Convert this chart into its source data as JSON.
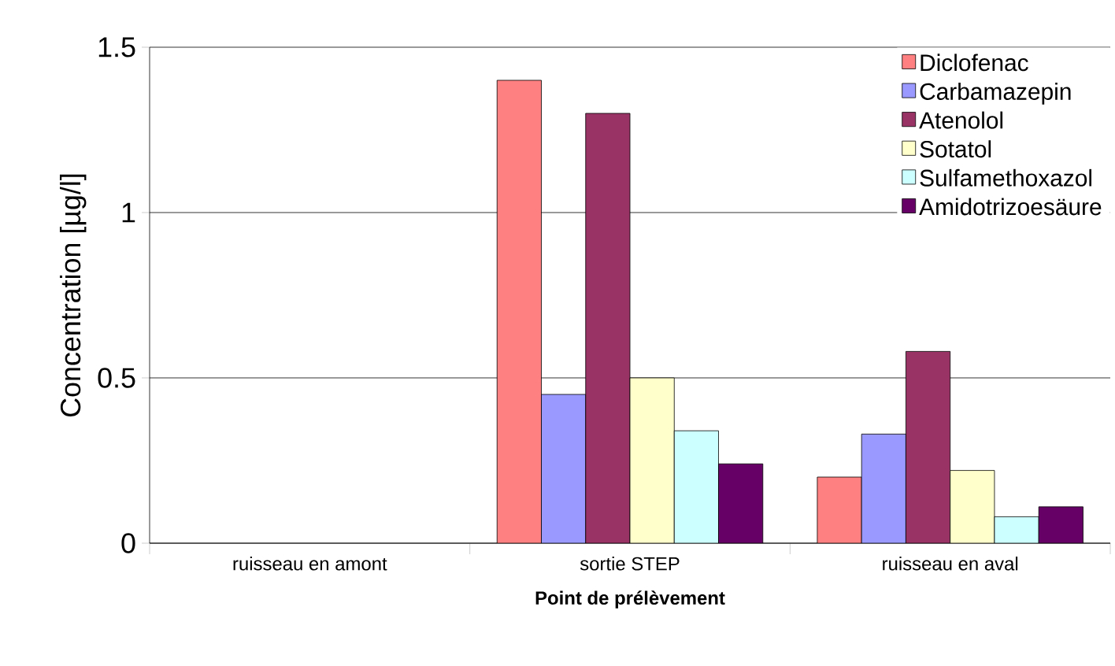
{
  "chart_data": {
    "type": "bar",
    "xlabel": "Point de prélèvement",
    "ylabel": "Concentration [µg/l]",
    "categories": [
      "ruisseau en amont",
      "sortie STEP",
      "ruisseau en aval"
    ],
    "series": [
      {
        "name": "Diclofenac",
        "color": "#ff8080",
        "values": [
          null,
          1.4,
          0.2
        ]
      },
      {
        "name": "Carbamazepin",
        "color": "#9999ff",
        "values": [
          null,
          0.45,
          0.33
        ]
      },
      {
        "name": "Atenolol",
        "color": "#993366",
        "values": [
          null,
          1.3,
          0.58
        ]
      },
      {
        "name": "Sotatol",
        "color": "#ffffcc",
        "values": [
          null,
          0.5,
          0.22
        ]
      },
      {
        "name": "Sulfamethoxazol",
        "color": "#ccffff",
        "values": [
          null,
          0.34,
          0.08
        ]
      },
      {
        "name": "Amidotrizoesäure",
        "color": "#660066",
        "values": [
          null,
          0.24,
          0.11
        ]
      }
    ],
    "ylim": [
      0,
      1.5
    ],
    "yticks": [
      0,
      0.5,
      1,
      1.5
    ],
    "grid": "y",
    "legend": "top right"
  }
}
